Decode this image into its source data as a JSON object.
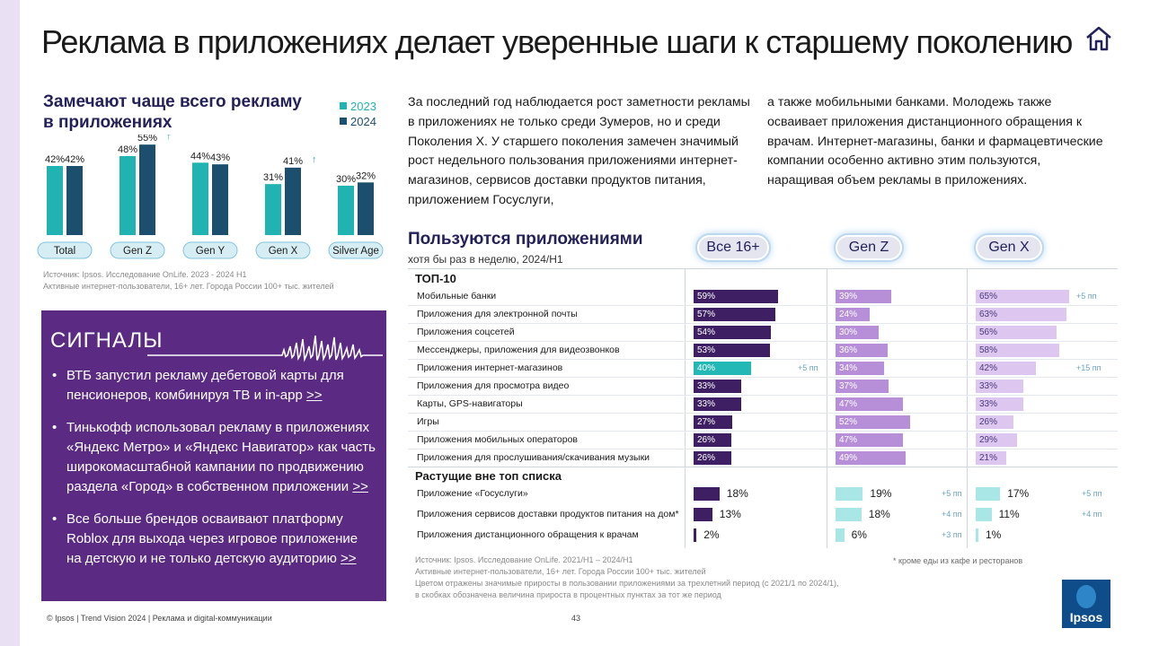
{
  "title": "Реклама в приложениях делает уверенные шаги к старшему поколению",
  "home_icon": "home-icon",
  "colors": {
    "y2023": "#21b3b2",
    "y2024": "#1c4f6e",
    "purple": "#5b2b84",
    "all_dark": "#3e1f63",
    "genz": "#b68fd8",
    "genx": "#ddc6ef",
    "teal": "#23b8b6",
    "teal_light": "#a9e7e6"
  },
  "left_chart_title": "Замечают чаще всего рекламу в приложениях",
  "left_source": "Источник: Ipsos. Исследование OnLife. 2023 - 2024 H1\nАктивные интернет-пользователи, 16+ лет. Города России 100+ тыс. жителей",
  "chart_data": [
    {
      "type": "bar",
      "title": "Замечают чаще всего рекламу в приложениях",
      "categories": [
        "Total",
        "Gen Z",
        "Gen Y",
        "Gen X",
        "Silver Age"
      ],
      "series": [
        {
          "name": "2023",
          "values": [
            42,
            48,
            44,
            31,
            30
          ],
          "labels": [
            "42%",
            "48%",
            "44%",
            "31%",
            "30%"
          ]
        },
        {
          "name": "2024",
          "values": [
            42,
            55,
            43,
            41,
            32
          ],
          "labels": [
            "42%",
            "55%",
            "43%",
            "41%",
            "32%"
          ]
        }
      ],
      "growth_marks": [
        "",
        "↑",
        "",
        "↑",
        ""
      ],
      "ylim": [
        0,
        60
      ]
    },
    {
      "type": "bar",
      "title": "Пользуются приложениями",
      "subtitle": "хотя бы раз в неделю, 2024/H1",
      "groups": [
        "Все 16+",
        "Gen Z",
        "Gen X"
      ],
      "sections": [
        {
          "name": "ТОП-10",
          "rows": [
            {
              "label": "Мобильные банки",
              "values": [
                59,
                39,
                65
              ],
              "labels": [
                "59%",
                "39%",
                "65%"
              ],
              "delta_all": "",
              "delta_genx": "+5 пп"
            },
            {
              "label": "Приложения для электронной почты",
              "values": [
                57,
                24,
                63
              ],
              "labels": [
                "57%",
                "24%",
                "63%"
              ],
              "delta_all": "",
              "delta_genx": ""
            },
            {
              "label": "Приложения соцсетей",
              "values": [
                54,
                30,
                56
              ],
              "labels": [
                "54%",
                "30%",
                "56%"
              ],
              "delta_all": "",
              "delta_genx": ""
            },
            {
              "label": "Мессенджеры, приложения для видеозвонков",
              "values": [
                53,
                36,
                58
              ],
              "labels": [
                "53%",
                "36%",
                "58%"
              ],
              "delta_all": "",
              "delta_genx": ""
            },
            {
              "label": "Приложения интернет-магазинов",
              "values": [
                40,
                34,
                42
              ],
              "labels": [
                "40%",
                "34%",
                "42%"
              ],
              "delta_all": "+5 пп",
              "delta_genx": "+15 пп"
            },
            {
              "label": "Приложения для просмотра видео",
              "values": [
                33,
                37,
                33
              ],
              "labels": [
                "33%",
                "37%",
                "33%"
              ],
              "delta_all": "",
              "delta_genx": ""
            },
            {
              "label": "Карты, GPS-навигаторы",
              "values": [
                33,
                47,
                33
              ],
              "labels": [
                "33%",
                "47%",
                "33%"
              ],
              "delta_all": "",
              "delta_genx": ""
            },
            {
              "label": "Игры",
              "values": [
                27,
                52,
                26
              ],
              "labels": [
                "27%",
                "52%",
                "26%"
              ],
              "delta_all": "",
              "delta_genx": ""
            },
            {
              "label": "Приложения мобильных операторов",
              "values": [
                26,
                47,
                29
              ],
              "labels": [
                "26%",
                "47%",
                "29%"
              ],
              "delta_all": "",
              "delta_genx": ""
            },
            {
              "label": "Приложения для прослушивания/скачивания музыки",
              "values": [
                26,
                49,
                21
              ],
              "labels": [
                "26%",
                "49%",
                "21%"
              ],
              "delta_all": "",
              "delta_genx": ""
            }
          ]
        },
        {
          "name": "Растущие вне топ списка",
          "rows": [
            {
              "label": "Приложение «Госуслуги»",
              "values": [
                18,
                19,
                17
              ],
              "labels": [
                "18%",
                "19%",
                "17%"
              ],
              "deltas": [
                "",
                "+5 пп",
                "+5 пп"
              ]
            },
            {
              "label": "Приложения сервисов доставки продуктов питания на дом*",
              "values": [
                13,
                18,
                11
              ],
              "labels": [
                "13%",
                "18%",
                "11%"
              ],
              "deltas": [
                "",
                "+4 пп",
                "+4 пп"
              ]
            },
            {
              "label": "Приложения дистанционного обращения к врачам",
              "values": [
                2,
                6,
                1
              ],
              "labels": [
                "2%",
                "6%",
                "1%"
              ],
              "deltas": [
                "",
                "+3 пп",
                ""
              ]
            }
          ]
        }
      ]
    }
  ],
  "signals": {
    "heading": "СИГНАЛЫ",
    "items": [
      {
        "text": "ВТБ запустил рекламу дебетовой карты для пенсионеров, комбинируя ТВ и in-app ",
        "link": ">>"
      },
      {
        "text": "Тинькофф использовал рекламу в приложениях «Яндекс Метро» и «Яндекс Навигатор» как часть широкомасштабной кампании по продвижению раздела «Город» в собственном приложении ",
        "link": ">>"
      },
      {
        "text": "Все больше брендов осваивают платформу Roblox для выхода через игровое приложение на детскую и не только детскую аудиторию ",
        "link": ">>"
      }
    ]
  },
  "paragraph_left": "За последний год наблюдается рост заметности рекламы  в приложениях не только среди Зумеров, но и среди Поколения Х. У старшего поколения замечен значимый рост недельного пользования приложениями интернет-магазинов, сервисов доставки продуктов питания, приложением Госуслуги,",
  "paragraph_right": "а также мобильными банками. Молодежь также осваивает приложения дистанционного обращения к врачам. Интернет-магазины, банки и фармацевтические компании особенно активно этим пользуются, наращивая объем рекламы в приложениях.",
  "right_source": "Источник: Ipsos. Исследование OnLife. 2021/H1 – 2024/H1\nАктивные интернет-пользователи, 16+ лет. Города России 100+ тыс. жителей\nЦветом отражены значимые приросты в пользовании приложениями за трехлетний период (с 2021/1 по 2024/1),\nв скобках обозначена величина прироста в процентных пунктах за тот же период",
  "footnote": "* кроме еды из кафе и ресторанов",
  "footer": "© Ipsos | Trend Vision 2024 | Реклама и digital-коммуникации",
  "page_number": "43",
  "logo_text": "Ipsos"
}
